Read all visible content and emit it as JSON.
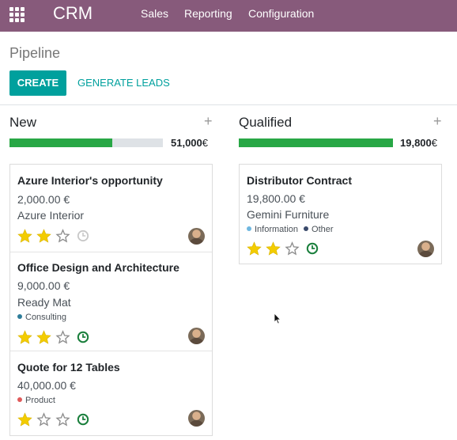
{
  "navbar": {
    "app_name": "CRM",
    "menu": [
      "Sales",
      "Reporting",
      "Configuration"
    ],
    "color": "#875a7b"
  },
  "control_panel": {
    "title": "Pipeline",
    "create_label": "CREATE",
    "generate_label": "GENERATE LEADS"
  },
  "columns": [
    {
      "title": "New",
      "add_icon": "+",
      "total": "51,000",
      "currency": "€",
      "progress": 0.67,
      "cards": [
        {
          "title": "Azure Interior's opportunity",
          "amount": "2,000.00 €",
          "partner": "Azure Interior",
          "tags": [],
          "stars": 2,
          "activity": "clock-icon-none"
        },
        {
          "title": "Office Design and Architecture",
          "amount": "9,000.00 €",
          "partner": "Ready Mat",
          "tags": [
            {
              "name": "Consulting",
              "color": "#2e7d9a"
            }
          ],
          "stars": 2,
          "activity": "clock-icon-planned"
        },
        {
          "title": "Quote for 12 Tables",
          "amount": "40,000.00 €",
          "partner": "",
          "tags": [
            {
              "name": "Product",
              "color": "#e05a5a"
            }
          ],
          "stars": 1,
          "activity": "clock-icon-planned"
        }
      ]
    },
    {
      "title": "Qualified",
      "add_icon": "+",
      "total": "19,800",
      "currency": "€",
      "progress": 1.0,
      "cards": [
        {
          "title": "Distributor Contract",
          "amount": "19,800.00 €",
          "partner": "Gemini Furniture",
          "tags": [
            {
              "name": "Information",
              "color": "#6fb7e0"
            },
            {
              "name": "Other",
              "color": "#3a4a6b"
            }
          ],
          "stars": 2,
          "activity": "clock-icon-planned"
        }
      ]
    }
  ],
  "colors": {
    "accent": "#00a09d",
    "progress": "#28a745",
    "star": "#f3cc00",
    "activity_planned": "#1a7f3c",
    "activity_none": "#c8c8c8"
  }
}
